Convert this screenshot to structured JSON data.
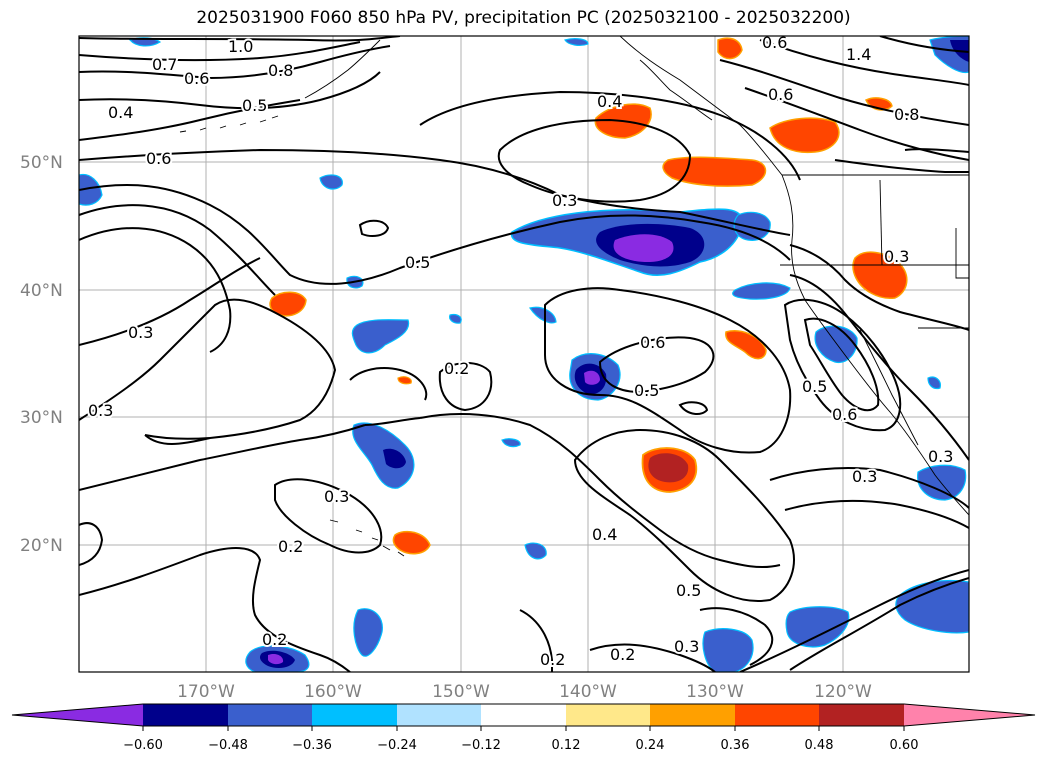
{
  "title": "2025031900 F060 850 hPa PV, precipitation PC (2025032100 - 2025032200)",
  "lat_labels": [
    "50°N",
    "40°N",
    "30°N",
    "20°N"
  ],
  "lon_labels": [
    "170°W",
    "160°W",
    "150°W",
    "140°W",
    "130°W",
    "120°W"
  ],
  "contour_labels": [
    "1.0",
    "0.7",
    "0.6",
    "0.8",
    "0.5",
    "0.4",
    "1.4",
    "0.6",
    "0.8",
    "0.6",
    "0.6",
    "0.3",
    "0.5",
    "0.4",
    "0.3",
    "0.3",
    "0.2",
    "0.6",
    "0.5",
    "0.5",
    "0.6",
    "0.3",
    "0.3",
    "0.2",
    "0.4",
    "0.5",
    "0.3",
    "0.2",
    "0.2",
    "0.3",
    "0.2",
    "0.3"
  ],
  "colorbar": {
    "ticks": [
      "−0.60",
      "−0.48",
      "−0.36",
      "−0.24",
      "−0.12",
      "0.12",
      "0.24",
      "0.36",
      "0.48",
      "0.60"
    ],
    "colors": [
      "#8a2be2",
      "#00008b",
      "#3a5fcd",
      "#00bfff",
      "#b0e2ff",
      "#ffffff",
      "#ffe88a",
      "#ffa000",
      "#ff4500",
      "#b22222",
      "#ff82ab"
    ]
  }
}
